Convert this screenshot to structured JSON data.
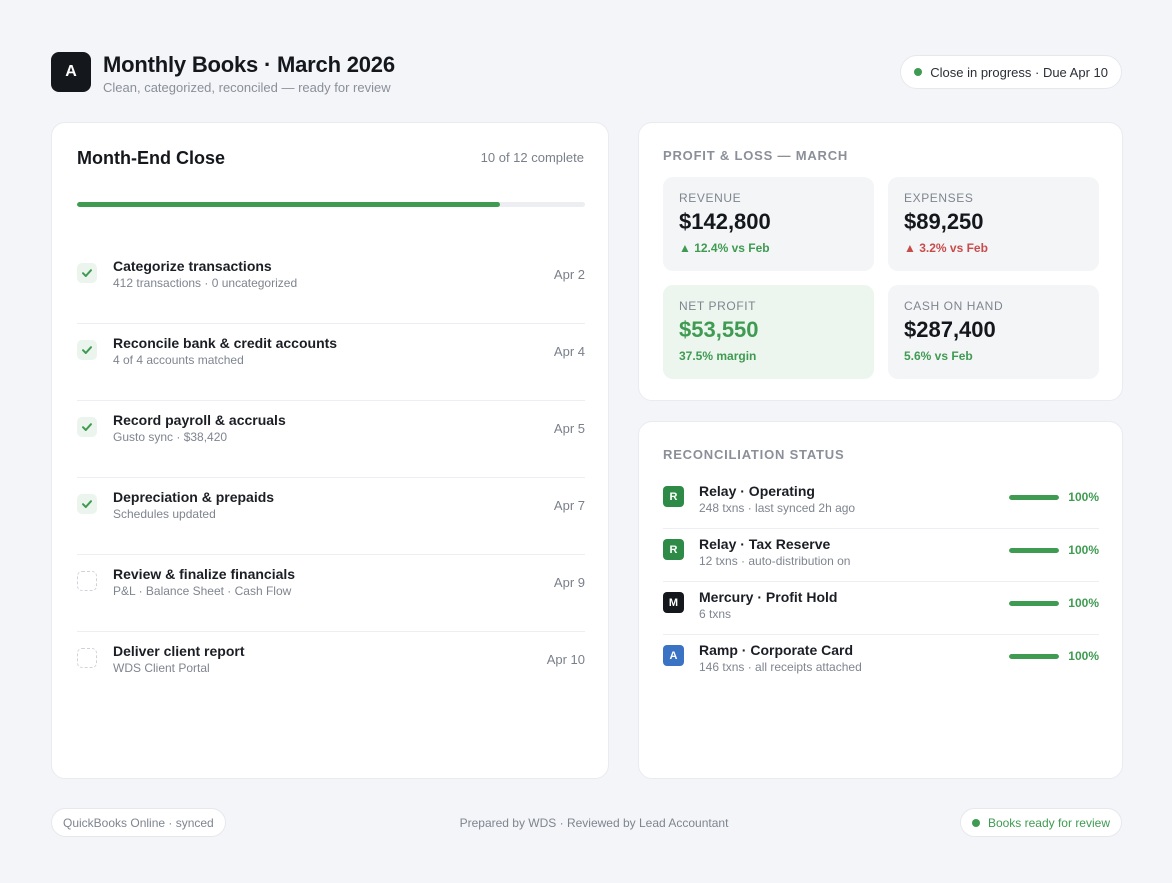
{
  "header": {
    "logo_letter": "A",
    "title": "Monthly Books · March 2026",
    "subtitle": "Clean, categorized, reconciled — ready for review",
    "status": "Close in progress · Due Apr 10"
  },
  "close": {
    "title": "Month-End Close",
    "count": "10 of 12 complete",
    "progress_fraction": 0.833,
    "tasks": [
      {
        "name": "Categorize transactions",
        "sub": "412 transactions · 0 uncategorized",
        "date": "Apr 2",
        "done": true
      },
      {
        "name": "Reconcile bank & credit accounts",
        "sub": "4 of 4 accounts matched",
        "date": "Apr 4",
        "done": true
      },
      {
        "name": "Record payroll & accruals",
        "sub": "Gusto sync · $38,420",
        "date": "Apr 5",
        "done": true
      },
      {
        "name": "Depreciation & prepaids",
        "sub": "Schedules updated",
        "date": "Apr 7",
        "done": true
      },
      {
        "name": "Review & finalize financials",
        "sub": "P&L · Balance Sheet · Cash Flow",
        "date": "Apr 9",
        "done": false
      },
      {
        "name": "Deliver client report",
        "sub": "WDS Client Portal",
        "date": "Apr 10",
        "done": false
      }
    ]
  },
  "pl": {
    "title": "PROFIT & LOSS — MARCH",
    "tiles": [
      {
        "label": "REVENUE",
        "value": "$142,800",
        "delta": "▲ 12.4% vs Feb",
        "tone": "green"
      },
      {
        "label": "EXPENSES",
        "value": "$89,250",
        "delta": "▲ 3.2% vs Feb",
        "tone": "red"
      },
      {
        "label": "NET PROFIT",
        "value": "$53,550",
        "delta": "37.5% margin",
        "tone": "green"
      },
      {
        "label": "CASH ON HAND",
        "value": "$287,400",
        "delta": "5.6% vs Feb",
        "tone": "green"
      }
    ]
  },
  "reconciliation": {
    "title": "RECONCILIATION STATUS",
    "accounts": [
      {
        "badge": "R",
        "badge_color": "#2e8b47",
        "name": "Relay · Operating",
        "sub": "248 txns · last synced 2h ago",
        "pct": "100%",
        "fraction": 1.0
      },
      {
        "badge": "R",
        "badge_color": "#2e8b47",
        "name": "Relay · Tax Reserve",
        "sub": "12 txns · auto-distribution on",
        "pct": "100%",
        "fraction": 1.0
      },
      {
        "badge": "M",
        "badge_color": "#14171c",
        "name": "Mercury · Profit Hold",
        "sub": "6 txns",
        "pct": "100%",
        "fraction": 1.0
      },
      {
        "badge": "A",
        "badge_color": "#3b73c4",
        "name": "Ramp · Corporate Card",
        "sub": "146 txns · all receipts attached",
        "pct": "100%",
        "fraction": 1.0
      }
    ]
  },
  "footer": {
    "left": "QuickBooks Online · synced",
    "center": "Prepared by WDS · Reviewed by Lead Accountant",
    "right": "Books ready for review"
  },
  "colors": {
    "accent_green": "#3f9b52",
    "alert_red": "#c94c4c"
  }
}
